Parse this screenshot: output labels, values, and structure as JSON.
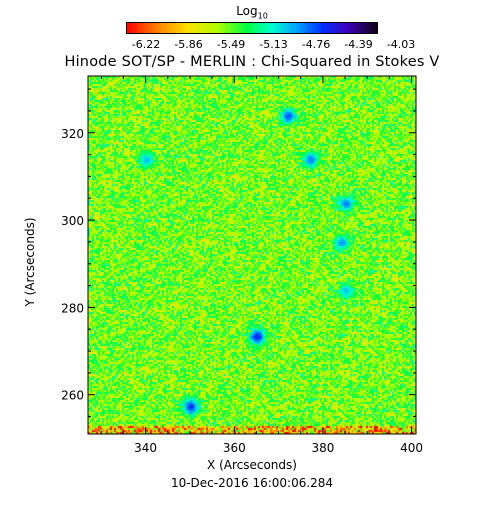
{
  "chart_data": {
    "type": "heatmap",
    "title": "Hinode SOT/SP - MERLIN : Chi-Squared in Stokes V",
    "colorbar": {
      "label": "Log",
      "label_subscript": "10",
      "ticks": [
        "-6.22",
        "-5.86",
        "-5.49",
        "-5.13",
        "-4.76",
        "-4.39",
        "-4.03"
      ],
      "range": [
        -6.4,
        -3.85
      ],
      "colormap": [
        "#ff0000",
        "#ff7f00",
        "#ffe000",
        "#b0ff00",
        "#00ff40",
        "#00ffd0",
        "#00a0ff",
        "#0030ff",
        "#4000c0",
        "#100010"
      ]
    },
    "xlabel": "X (Arcseconds)",
    "ylabel": "Y (Arcseconds)",
    "xlim": [
      327,
      401
    ],
    "ylim": [
      251,
      333
    ],
    "xticks": [
      "340",
      "360",
      "380",
      "400"
    ],
    "yticks": [
      "260",
      "280",
      "300",
      "320"
    ],
    "blue_patches": [
      {
        "x": 365,
        "y": 273.5,
        "v": -4.35
      },
      {
        "x": 350,
        "y": 257.5,
        "v": -4.4
      },
      {
        "x": 372,
        "y": 324,
        "v": -4.5
      },
      {
        "x": 377,
        "y": 314,
        "v": -4.6
      },
      {
        "x": 385,
        "y": 304,
        "v": -4.6
      },
      {
        "x": 384,
        "y": 295,
        "v": -4.7
      },
      {
        "x": 385,
        "y": 284,
        "v": -4.8
      },
      {
        "x": 340,
        "y": 314,
        "v": -4.8
      }
    ],
    "date": "10-Dec-2016 16:00:06.284"
  }
}
